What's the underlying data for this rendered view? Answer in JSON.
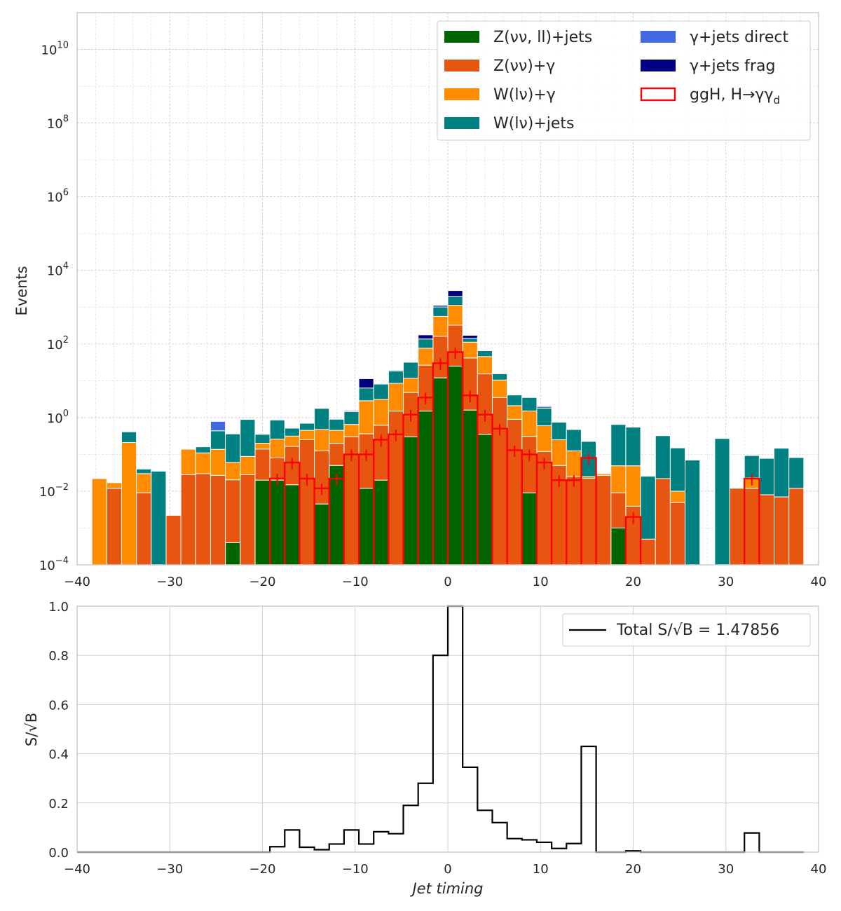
{
  "chart_data": [
    {
      "type": "bar",
      "stacked": true,
      "ylabel": "Events",
      "yscale": "log",
      "ylim": [
        0.0001,
        100000000000
      ],
      "xlim": [
        -40,
        40
      ],
      "grid": true,
      "legend_position": "top-right",
      "x_ticks": [
        "−40",
        "−30",
        "−20",
        "−10",
        "0",
        "10",
        "20",
        "30",
        "40"
      ],
      "y_ticks": [
        {
          "value": 0.0001,
          "base": "10",
          "exp": "−4"
        },
        {
          "value": 0.01,
          "base": "10",
          "exp": "−2"
        },
        {
          "value": 1,
          "base": "10",
          "exp": "0"
        },
        {
          "value": 100,
          "base": "10",
          "exp": "2"
        },
        {
          "value": 10000,
          "base": "10",
          "exp": "4"
        },
        {
          "value": 1000000,
          "base": "10",
          "exp": "6"
        },
        {
          "value": 100000000,
          "base": "10",
          "exp": "8"
        },
        {
          "value": 10000000000,
          "base": "10",
          "exp": "10"
        }
      ],
      "bin_edges": [
        -38.4,
        -36.8,
        -35.2,
        -33.6,
        -32.0,
        -30.4,
        -28.8,
        -27.2,
        -25.6,
        -24.0,
        -22.4,
        -20.8,
        -19.2,
        -17.6,
        -16.0,
        -14.4,
        -12.8,
        -11.2,
        -9.6,
        -8.0,
        -6.4,
        -4.8,
        -3.2,
        -1.6,
        0.0,
        1.6,
        3.2,
        4.8,
        6.4,
        8.0,
        9.6,
        11.2,
        12.8,
        14.4,
        16.0,
        17.6,
        19.2,
        20.8,
        22.4,
        24.0,
        25.6,
        27.2,
        28.8,
        30.4,
        32.0,
        33.6,
        35.2,
        36.8,
        38.4
      ],
      "series": [
        {
          "name": "Z(νν, ll)+jets",
          "color": "#006400",
          "values": [
            0,
            0,
            0,
            0,
            0,
            0,
            0,
            0,
            0,
            0.0004,
            0,
            0.02,
            0.02,
            0.015,
            0,
            0.0045,
            0.05,
            0,
            0.012,
            0.02,
            0,
            0.3,
            1.5,
            12,
            25,
            1.6,
            0.35,
            0,
            0,
            0.009,
            0,
            0,
            0,
            0,
            0,
            0.001,
            0,
            0,
            0,
            0,
            0,
            0,
            0,
            0,
            0,
            0,
            0,
            0
          ]
        },
        {
          "name": "Z(νν)+γ",
          "color": "#E65610",
          "values": [
            0,
            0.012,
            0,
            0.009,
            0,
            0.0022,
            0.028,
            0.03,
            0.027,
            0.02,
            0.028,
            0.12,
            0.06,
            0.15,
            0.25,
            0.12,
            0.15,
            0.3,
            0.35,
            0.6,
            1.5,
            4.5,
            25,
            150,
            300,
            40,
            15,
            3.5,
            0.9,
            0.3,
            0.12,
            0.05,
            0.025,
            0.0225,
            0.027,
            0.008,
            0.0039,
            0.0005,
            0.022,
            0.0049,
            0,
            0,
            0,
            0.012,
            0.012,
            0.008,
            0.007,
            0.012
          ]
        },
        {
          "name": "W(lν)+γ",
          "color": "#FF8C00",
          "values": [
            0.022,
            0.005,
            0.21,
            0.021,
            0,
            0,
            0.11,
            0.08,
            0.11,
            0.04,
            0.06,
            0.06,
            0.18,
            0.15,
            0.2,
            0.35,
            0.25,
            0.35,
            2.5,
            2.5,
            7,
            7,
            50,
            400,
            800,
            70,
            30,
            7,
            1.2,
            1.2,
            0.48,
            0.2,
            0.1,
            0.0025,
            0.003,
            0.04,
            0.045,
            0,
            0,
            0.0051,
            0,
            0,
            0.0001,
            0,
            0.011,
            0,
            0,
            0
          ]
        },
        {
          "name": "W(lν)+jets",
          "color": "#008080",
          "values": [
            0,
            0,
            0.2,
            0.01,
            0.035,
            0,
            0,
            0.05,
            0.3,
            0.3,
            0.8,
            0.15,
            0.6,
            0.2,
            0.25,
            1.3,
            0.45,
            0.8,
            3.5,
            5,
            10,
            20,
            60,
            450,
            800,
            30,
            20,
            5,
            2,
            2,
            1.2,
            0.5,
            0.35,
            0.2,
            0,
            0.6,
            0.5,
            0.025,
            0.3,
            0.14,
            0.07,
            0,
            0.27,
            0,
            0.07,
            0.07,
            0.14,
            0.07
          ]
        },
        {
          "name": "γ+jets direct",
          "color": "#4169E1",
          "values": [
            0,
            0,
            0,
            0,
            0,
            0,
            0,
            0,
            0.35,
            0,
            0,
            0,
            0,
            0,
            0,
            0,
            0,
            0.1,
            0,
            0,
            1.0,
            0,
            0,
            0,
            0,
            0,
            0,
            0,
            0,
            0,
            0.2,
            0,
            0.01,
            0,
            0,
            0,
            0,
            0,
            0,
            0,
            0,
            0,
            0,
            0,
            0,
            0,
            0,
            0
          ]
        },
        {
          "name": "γ+jets frag",
          "color": "#000080",
          "values": [
            0,
            0,
            0,
            0,
            0,
            0,
            0,
            0,
            0,
            0,
            0,
            0,
            0,
            0,
            0,
            0,
            0,
            0,
            5,
            0,
            0,
            0,
            40,
            100,
            900,
            30,
            2,
            0,
            0,
            0,
            0,
            0,
            0,
            0,
            0,
            0,
            0,
            0,
            0,
            0,
            0,
            0,
            0,
            0,
            0,
            0,
            0,
            0
          ]
        }
      ],
      "signal": {
        "name": "ggH, H→γγ_d",
        "color": "#FF0000",
        "values": [
          0,
          0,
          0,
          0,
          0,
          0,
          0,
          0,
          0,
          0,
          0,
          0,
          0.022,
          0.06,
          0.022,
          0.012,
          0.022,
          0.1,
          0.1,
          0.25,
          0.35,
          1.2,
          3.5,
          30,
          60,
          4,
          1.2,
          0.5,
          0.13,
          0.1,
          0.06,
          0.02,
          0.02,
          0.08,
          0,
          0,
          0.002,
          0,
          0,
          0,
          0,
          0,
          0,
          0,
          0.022,
          0,
          0,
          0
        ]
      }
    },
    {
      "type": "line",
      "step": true,
      "xlabel": "Jet timing",
      "ylabel": "S/√B",
      "ylim": [
        0,
        1.0
      ],
      "xlim": [
        -40,
        40
      ],
      "grid": true,
      "legend_position": "top-right",
      "legend_label": "Total S/√B = 1.47856",
      "legend_color": "#800080",
      "line_color": "#000000",
      "x_ticks": [
        "−40",
        "−30",
        "−20",
        "−10",
        "0",
        "10",
        "20",
        "30",
        "40"
      ],
      "y_ticks": [
        "0.0",
        "0.2",
        "0.4",
        "0.6",
        "0.8",
        "1.0"
      ],
      "bin_edges": [
        -40.0,
        -38.4,
        -36.8,
        -35.2,
        -33.6,
        -32.0,
        -30.4,
        -28.8,
        -27.2,
        -25.6,
        -24.0,
        -22.4,
        -20.8,
        -19.2,
        -17.6,
        -16.0,
        -14.4,
        -12.8,
        -11.2,
        -9.6,
        -8.0,
        -6.4,
        -4.8,
        -3.2,
        -1.6,
        0.0,
        1.6,
        3.2,
        4.8,
        6.4,
        8.0,
        9.6,
        11.2,
        12.8,
        14.4,
        16.0,
        17.6,
        19.2,
        20.8,
        22.4,
        24.0,
        25.6,
        27.2,
        28.8,
        30.4,
        32.0,
        33.6,
        35.2,
        36.8,
        38.4
      ],
      "values": [
        0,
        0,
        0,
        0,
        0,
        0,
        0,
        0,
        0,
        0,
        0,
        0,
        0,
        0.022,
        0.09,
        0.02,
        0.01,
        0.033,
        0.09,
        0.033,
        0.083,
        0.075,
        0.19,
        0.28,
        0.8,
        3.0,
        0.345,
        0.17,
        0.12,
        0.055,
        0.05,
        0.04,
        0.015,
        0.035,
        0.43,
        0,
        0,
        0.005,
        0,
        0,
        0,
        0,
        0,
        0,
        0,
        0.078,
        0,
        0,
        0
      ]
    }
  ]
}
